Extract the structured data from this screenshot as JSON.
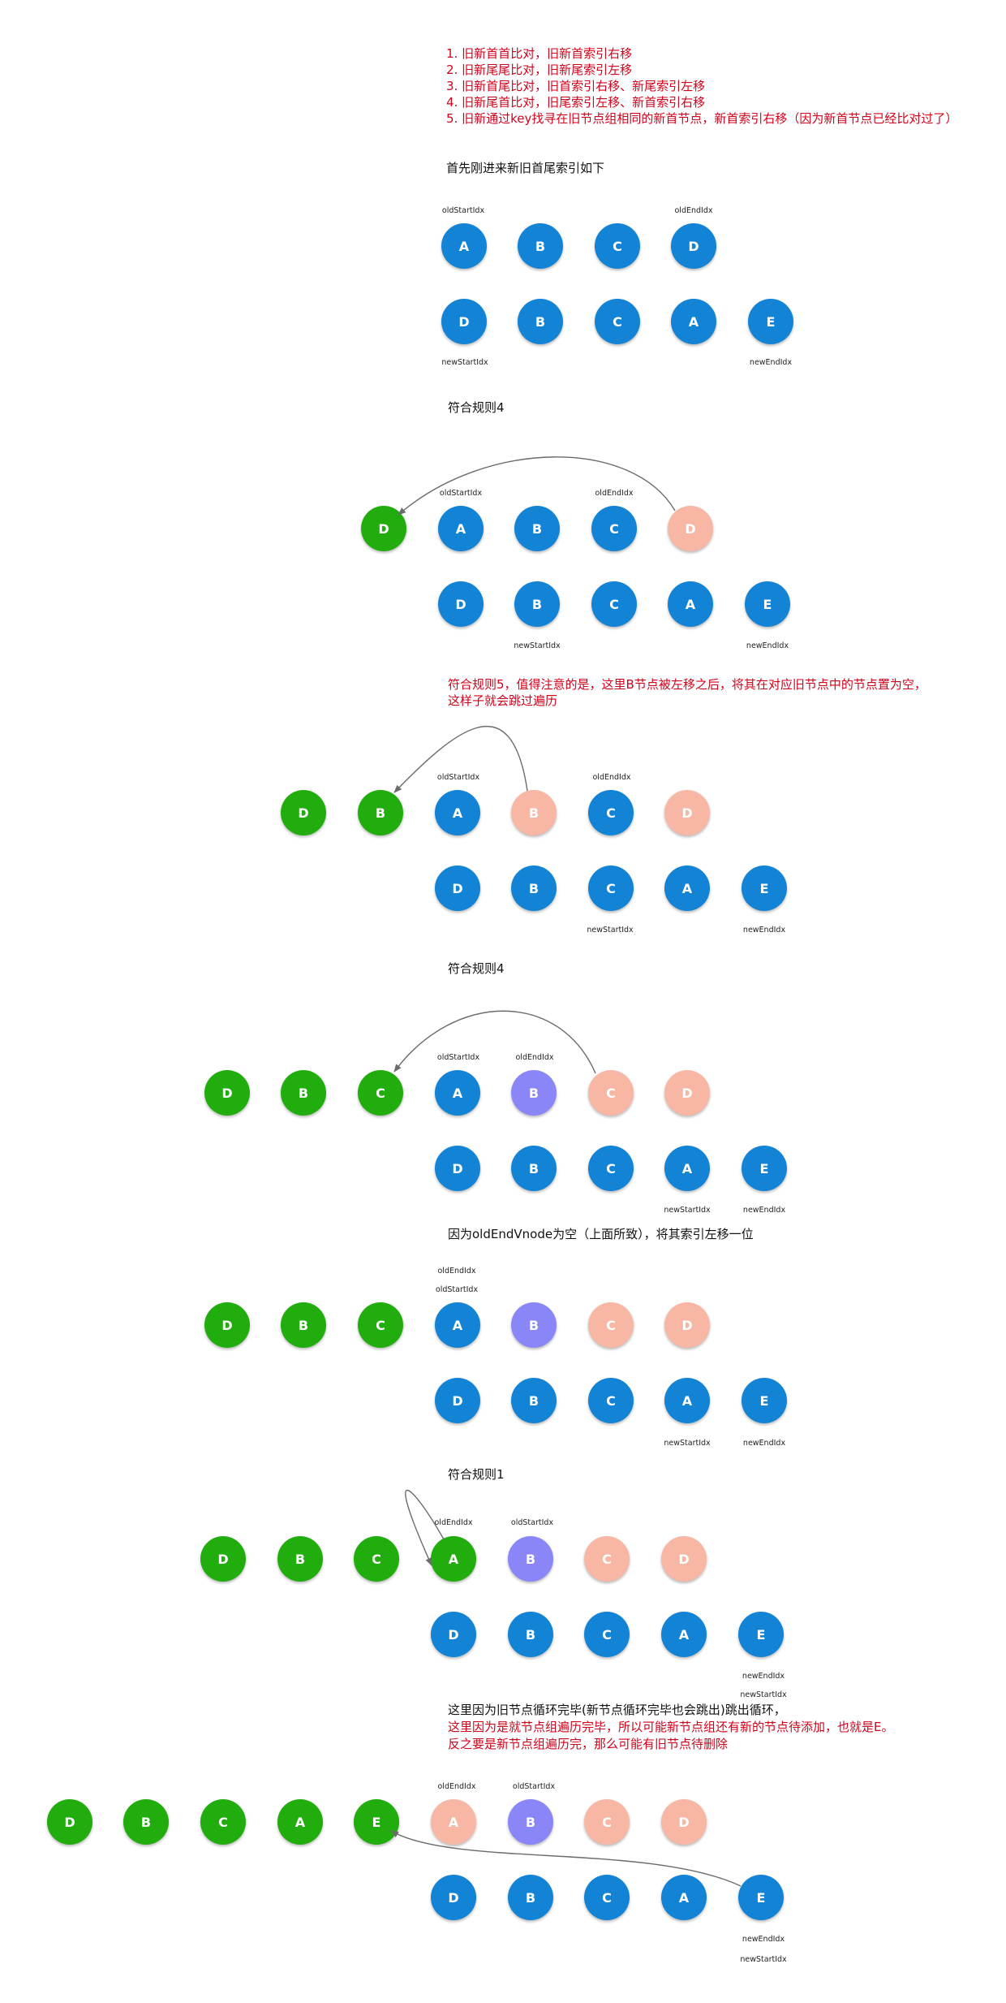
{
  "rules": [
    "1. 旧新首首比对，旧新首索引右移",
    "2. 旧新尾尾比对，旧新尾索引左移",
    "3. 旧新首尾比对，旧首索引右移、新尾索引左移",
    "4. 旧新尾首比对，旧尾索引左移、新首索引右移",
    "5. 旧新通过key找寻在旧节点组相同的新首节点，新首索引右移（因为新首节点已经比对过了）"
  ],
  "steps": [
    {
      "title": "首先刚进来新旧首尾索引如下",
      "subtitle": [],
      "top_row": [
        "A",
        "B",
        "C",
        "D"
      ],
      "bottom_row": [
        "D",
        "B",
        "C",
        "A",
        "E"
      ],
      "labels": [
        "oldStartIdx",
        "oldEndIdx",
        "newStartIdx",
        "newEndIdx"
      ]
    },
    {
      "title": "符合规则4",
      "subtitle": [],
      "top_row": [
        "D",
        "A",
        "B",
        "C",
        "D"
      ],
      "bottom_row": [
        "D",
        "B",
        "C",
        "A",
        "E"
      ],
      "labels": [
        "oldStartIdx",
        "oldEndIdx",
        "newStartIdx",
        "newEndIdx"
      ]
    },
    {
      "title": "符合规则5，值得注意的是，这里B节点被左移之后，将其在对应旧节点中的节点置为空，",
      "subtitle": [
        "这样子就会跳过遍历"
      ],
      "top_row": [
        "D",
        "B",
        "A",
        "B",
        "C",
        "D"
      ],
      "bottom_row": [
        "D",
        "B",
        "C",
        "A",
        "E"
      ],
      "labels": [
        "oldStartIdx",
        "oldEndIdx",
        "newStartIdx",
        "newEndIdx"
      ]
    },
    {
      "title": "符合规则4",
      "subtitle": [],
      "top_row": [
        "D",
        "B",
        "C",
        "A",
        "B",
        "C",
        "D"
      ],
      "bottom_row": [
        "D",
        "B",
        "C",
        "A",
        "E"
      ],
      "labels": [
        "oldStartIdx",
        "oldEndIdx",
        "newStartIdx",
        "newEndIdx"
      ]
    },
    {
      "title": "因为oldEndVnode为空（上面所致），将其索引左移一位",
      "subtitle": [],
      "top_row": [
        "D",
        "B",
        "C",
        "A",
        "B",
        "C",
        "D"
      ],
      "bottom_row": [
        "D",
        "B",
        "C",
        "A",
        "E"
      ],
      "labels": [
        "oldEndIdx",
        "oldStartIdx",
        "newStartIdx",
        "newEndIdx"
      ]
    },
    {
      "title": "符合规则1",
      "subtitle": [],
      "top_row": [
        "D",
        "B",
        "C",
        "A",
        "B",
        "C",
        "D"
      ],
      "bottom_row": [
        "D",
        "B",
        "C",
        "A",
        "E"
      ],
      "labels": [
        "oldEndIdx",
        "oldStartIdx",
        "newEndIdx",
        "newStartIdx"
      ]
    },
    {
      "title": "这里因为旧节点循环完毕(新节点循环完毕也会跳出)跳出循环，",
      "subtitle": [
        "这里因为是就节点组遍历完毕，所以可能新节点组还有新的节点待添加，也就是E。",
        "反之要是新节点组遍历完，那么可能有旧节点待删除"
      ],
      "top_row": [
        "D",
        "B",
        "C",
        "A",
        "E",
        "A",
        "B",
        "C",
        "D"
      ],
      "bottom_row": [
        "D",
        "B",
        "C",
        "A",
        "E"
      ],
      "labels": [
        "oldEndIdx",
        "oldStartIdx",
        "newEndIdx",
        "newStartIdx"
      ]
    }
  ],
  "colors": {
    "blue": "#1383d5",
    "green": "#21ad0d",
    "pink": "#f8b7a5",
    "purple": "#8a86f8",
    "red_text": "#d0021b"
  }
}
